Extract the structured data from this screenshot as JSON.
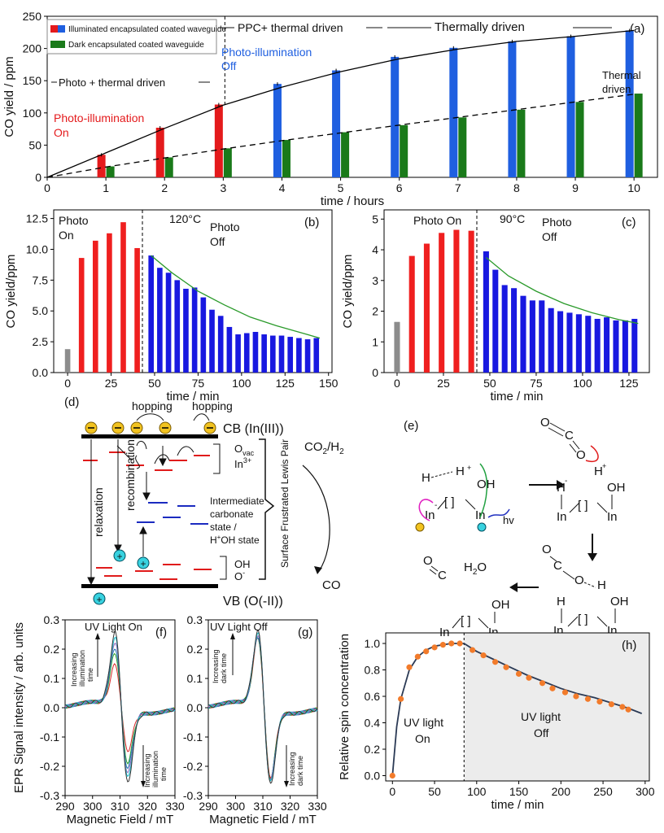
{
  "chart_data": [
    {
      "id": "a",
      "type": "bar",
      "panel_label": "(a)",
      "xlabel": "time / hours",
      "ylabel": "CO yield / ppm",
      "xlim": [
        0,
        10.4
      ],
      "ylim": [
        0,
        250
      ],
      "xticks": [
        0,
        1,
        2,
        3,
        4,
        5,
        6,
        7,
        8,
        9,
        10
      ],
      "yticks": [
        0,
        50,
        100,
        150,
        200,
        250
      ],
      "legend": [
        {
          "label": "Illuminated encapsulated coated waveguide",
          "colors": [
            "#e41a1c",
            "#1f5fe0"
          ]
        },
        {
          "label": "Dark encapsulated coated waveguide",
          "colors": [
            "#1a7a1a"
          ]
        }
      ],
      "series": [
        {
          "name": "Illuminated encapsulated coated waveguide",
          "x": [
            1,
            2,
            3,
            4,
            5,
            6,
            7,
            8,
            9,
            10
          ],
          "values": [
            35,
            77,
            113,
            145,
            166,
            187,
            201,
            211,
            219,
            228
          ],
          "colors": [
            "#e41a1c",
            "#e41a1c",
            "#e41a1c",
            "#1f5fe0",
            "#1f5fe0",
            "#1f5fe0",
            "#1f5fe0",
            "#1f5fe0",
            "#1f5fe0",
            "#1f5fe0"
          ]
        },
        {
          "name": "Dark encapsulated coated waveguide",
          "x": [
            1,
            2,
            3,
            4,
            5,
            6,
            7,
            8,
            9,
            10
          ],
          "values": [
            17,
            31,
            45,
            58,
            70,
            81,
            93,
            105,
            117,
            130
          ],
          "colors": [
            "#1a7a1a"
          ]
        }
      ],
      "fit_solid": {
        "x": [
          0,
          1,
          2,
          3,
          4,
          5,
          6,
          7,
          8,
          9,
          10
        ],
        "y": [
          0,
          38,
          76,
          112,
          140,
          164,
          184,
          199,
          211,
          219,
          228
        ]
      },
      "fit_dashed": {
        "x": [
          0,
          1,
          2,
          3,
          4,
          5,
          6,
          7,
          8,
          9,
          10
        ],
        "y": [
          0,
          16,
          30,
          44,
          57,
          69,
          81,
          93,
          105,
          117,
          129
        ]
      },
      "annotations": [
        {
          "text": "Photo + thermal driven"
        },
        {
          "text": "PPC+ thermal driven"
        },
        {
          "text": "Thermally driven"
        },
        {
          "text": "Photo-illumination",
          "color": "#e41a1c"
        },
        {
          "text": "On",
          "color": "#e41a1c"
        },
        {
          "text": "Photo-illumination",
          "color": "#1f5fe0"
        },
        {
          "text": "Off",
          "color": "#1f5fe0"
        },
        {
          "text": "Thermal"
        },
        {
          "text": "driven"
        }
      ]
    },
    {
      "id": "b",
      "type": "bar",
      "panel_label": "(b)",
      "xlabel": "time / min",
      "ylabel": "CO yield/ppm",
      "xlim": [
        -8,
        152
      ],
      "ylim": [
        0,
        13.2
      ],
      "xticks": [
        0,
        25,
        50,
        75,
        100,
        125,
        150
      ],
      "yticks": [
        0,
        2.5,
        5.0,
        7.5,
        10.0,
        12.5
      ],
      "ytick_labels": [
        "0.0",
        "2.5",
        "5.0",
        "7.5",
        "10.0",
        "12.5"
      ],
      "annotations": [
        "Photo",
        "On",
        "120°C",
        "Photo",
        "Off"
      ],
      "x": [
        0,
        8,
        16,
        24,
        32,
        40,
        48,
        53,
        58,
        63,
        68,
        73,
        78,
        83,
        88,
        93,
        98,
        103,
        108,
        113,
        118,
        123,
        128,
        133,
        138,
        143
      ],
      "values": [
        1.9,
        9.3,
        10.7,
        11.3,
        12.2,
        10.1,
        9.5,
        8.5,
        8.1,
        7.5,
        6.8,
        6.9,
        6.1,
        5.1,
        4.6,
        3.7,
        3.1,
        3.2,
        3.3,
        3.1,
        3.0,
        3.0,
        2.9,
        2.8,
        2.7,
        2.8
      ],
      "colors": [
        "#8c8c8c",
        "#ef1f1f",
        "#ef1f1f",
        "#ef1f1f",
        "#ef1f1f",
        "#ef1f1f",
        "#1818e0",
        "#1818e0",
        "#1818e0",
        "#1818e0",
        "#1818e0",
        "#1818e0",
        "#1818e0",
        "#1818e0",
        "#1818e0",
        "#1818e0",
        "#1818e0",
        "#1818e0",
        "#1818e0",
        "#1818e0",
        "#1818e0",
        "#1818e0",
        "#1818e0",
        "#1818e0",
        "#1818e0",
        "#1818e0"
      ],
      "divider_x": 43,
      "fit": {
        "x": [
          48,
          60,
          75,
          90,
          105,
          120,
          135,
          145
        ],
        "y": [
          9.5,
          8.1,
          6.6,
          5.5,
          4.5,
          3.8,
          3.2,
          2.8
        ]
      }
    },
    {
      "id": "c",
      "type": "bar",
      "panel_label": "(c)",
      "xlabel": "time / min",
      "ylabel": "CO yield/ppm",
      "xlim": [
        -7,
        136
      ],
      "ylim": [
        0,
        5.3
      ],
      "xticks": [
        0,
        25,
        50,
        75,
        100,
        125
      ],
      "yticks": [
        0,
        1,
        2,
        3,
        4,
        5
      ],
      "annotations": [
        "Photo On",
        "90°C",
        "Photo",
        "Off"
      ],
      "x": [
        0,
        8,
        16,
        24,
        32,
        40,
        48,
        53,
        58,
        63,
        68,
        73,
        78,
        83,
        88,
        93,
        98,
        103,
        108,
        113,
        118,
        123,
        128
      ],
      "values": [
        1.65,
        3.8,
        4.2,
        4.55,
        4.65,
        4.62,
        3.95,
        3.35,
        2.85,
        2.75,
        2.5,
        2.35,
        2.35,
        2.1,
        2.0,
        1.95,
        1.9,
        1.85,
        1.75,
        1.8,
        1.7,
        1.7,
        1.75
      ],
      "colors": [
        "#8c8c8c",
        "#ef1f1f",
        "#ef1f1f",
        "#ef1f1f",
        "#ef1f1f",
        "#ef1f1f",
        "#1818e0",
        "#1818e0",
        "#1818e0",
        "#1818e0",
        "#1818e0",
        "#1818e0",
        "#1818e0",
        "#1818e0",
        "#1818e0",
        "#1818e0",
        "#1818e0",
        "#1818e0",
        "#1818e0",
        "#1818e0",
        "#1818e0",
        "#1818e0",
        "#1818e0"
      ],
      "divider_x": 43,
      "fit": {
        "x": [
          48,
          60,
          75,
          90,
          105,
          120,
          130
        ],
        "y": [
          3.75,
          3.15,
          2.65,
          2.25,
          1.95,
          1.72,
          1.6
        ]
      }
    },
    {
      "id": "f",
      "type": "line",
      "panel_label": "(f)",
      "xlabel": "Magnetic Field / mT",
      "ylabel": "EPR Signal intensity / arb. units",
      "xlim": [
        290,
        330
      ],
      "ylim": [
        -0.3,
        0.3
      ],
      "xticks": [
        290,
        300,
        310,
        320,
        330
      ],
      "yticks": [
        -0.3,
        -0.2,
        -0.1,
        0.0,
        0.1,
        0.2,
        0.3
      ],
      "ytick_labels": [
        "-0.3",
        "-0.2",
        "-0.1",
        "0.0",
        "0.1",
        "0.2",
        "0.3"
      ],
      "annotations": [
        "UV Light On",
        "Increasing",
        "illumination",
        "time",
        "Increasing",
        "illumination",
        "time"
      ],
      "series_peak_heights": [
        0.14,
        0.18,
        0.2,
        0.22,
        0.235,
        0.25
      ]
    },
    {
      "id": "g",
      "type": "line",
      "panel_label": "(g)",
      "xlabel": "Magnetic Field / mT",
      "xlim": [
        290,
        330
      ],
      "ylim": [
        -0.3,
        0.3
      ],
      "xticks": [
        290,
        300,
        310,
        320,
        330
      ],
      "yticks": [
        -0.3,
        -0.2,
        -0.1,
        0.0,
        0.1,
        0.2,
        0.3
      ],
      "ytick_labels": [
        "-0.3",
        "-0.2",
        "-0.1",
        "0.0",
        "0.1",
        "0.2",
        "0.3"
      ],
      "annotations": [
        "UV Light Off",
        "Increasing",
        "dark time",
        "Increasing",
        "dark time"
      ],
      "series_peak_heights": [
        0.23,
        0.235,
        0.24,
        0.245,
        0.25,
        0.255
      ]
    },
    {
      "id": "h",
      "type": "scatter",
      "panel_label": "(h)",
      "xlabel": "time / min",
      "ylabel": "Relative spin concentration",
      "xlim": [
        -8,
        305
      ],
      "ylim": [
        -0.04,
        1.08
      ],
      "xticks": [
        0,
        50,
        100,
        150,
        200,
        250,
        300
      ],
      "yticks": [
        0.0,
        0.2,
        0.4,
        0.6,
        0.8,
        1.0
      ],
      "ytick_labels": [
        "0.0",
        "0.2",
        "0.4",
        "0.6",
        "0.8",
        "1.0"
      ],
      "annotations": [
        "UV light",
        "On",
        "UV light",
        "Off"
      ],
      "divider_x": 85,
      "x": [
        0,
        10,
        20,
        30,
        40,
        50,
        60,
        70,
        80,
        95,
        108,
        122,
        135,
        150,
        162,
        178,
        190,
        205,
        218,
        232,
        246,
        260,
        273,
        280
      ],
      "y": [
        0.0,
        0.58,
        0.82,
        0.9,
        0.94,
        0.97,
        0.99,
        1.0,
        1.0,
        0.95,
        0.91,
        0.86,
        0.82,
        0.77,
        0.74,
        0.7,
        0.66,
        0.63,
        0.6,
        0.58,
        0.56,
        0.54,
        0.52,
        0.5
      ],
      "point_color": "#f27b2b",
      "fit": {
        "x": [
          0,
          5,
          10,
          20,
          30,
          40,
          50,
          60,
          70,
          80,
          85,
          100,
          120,
          140,
          160,
          180,
          200,
          220,
          240,
          260,
          280,
          296
        ],
        "y": [
          0,
          0.37,
          0.58,
          0.8,
          0.9,
          0.95,
          0.98,
          0.99,
          1.0,
          1.0,
          1.0,
          0.94,
          0.88,
          0.82,
          0.76,
          0.71,
          0.66,
          0.62,
          0.59,
          0.55,
          0.51,
          0.47
        ]
      }
    }
  ],
  "diagram_d": {
    "panel_label": "(d)",
    "cb": "CB (In(III))",
    "vb": "VB (O(-II))",
    "hop1": "hopping",
    "hop2": "hopping",
    "ovac": "O",
    "ovac_sub": "vac",
    "in3": "In",
    "in3_sup": "3+",
    "relaxation": "relaxation",
    "recombination": "recombination",
    "inter1": "Intermediate",
    "inter2": "carbonate",
    "inter3": "state /",
    "inter4a": "H",
    "inter4b": "+",
    "inter4c": "OH state",
    "oh": "OH",
    "o": "O",
    "o_sup": "-",
    "flp": "Surface Frustrated Lewis Pair",
    "co2": "CO",
    "co2_sub": "2",
    "co2_tail": "/H",
    "h2_sub": "2",
    "co": "CO",
    "electron": "⊖",
    "hole": "+"
  },
  "diagram_e": {
    "panel_label": "(e)",
    "hv": "hv",
    "In": "In",
    "H": "H",
    "OH": "OH",
    "O": "O",
    "C": "C",
    "vac": "[ ]",
    "h2o_a": "H",
    "h2o_b": "2",
    "h2o_c": "O",
    "minus": "-",
    "plus": "+"
  }
}
